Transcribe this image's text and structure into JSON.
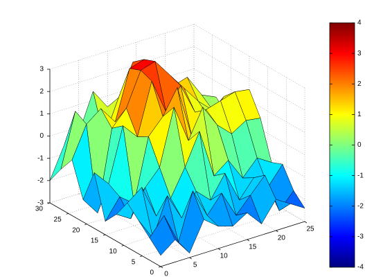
{
  "chart_data": {
    "type": "surface",
    "x": [
      0,
      2.5,
      5,
      7.5,
      10,
      12.5,
      15,
      17.5,
      20,
      22.5,
      25
    ],
    "y": [
      0,
      3,
      6,
      9,
      12,
      15,
      18,
      21,
      24,
      27,
      30
    ],
    "z": [
      [
        -2.5,
        -2,
        -2.8,
        -1.5,
        -2,
        -2.2,
        -1.8,
        -2.5,
        -1.6,
        -2,
        -2.4
      ],
      [
        -2,
        -1.2,
        -2.6,
        -0.5,
        -1.8,
        -1,
        -2.2,
        -1.5,
        -0.8,
        -2.6,
        -1.9
      ],
      [
        -1.5,
        -2.5,
        -0.8,
        -2,
        -1,
        -1.6,
        -0.6,
        -2,
        -1.2,
        -1.8,
        -1
      ],
      [
        -1,
        -0.5,
        -2,
        -1.4,
        -0.2,
        1.2,
        -1,
        -0.5,
        -1.5,
        -0.8,
        -1.2
      ],
      [
        -1.8,
        -2.2,
        -1,
        -0.3,
        2.2,
        0.5,
        1.8,
        0.8,
        0.2,
        0.6,
        0.5
      ],
      [
        -2.4,
        -1.5,
        -2,
        0.8,
        1.5,
        2.6,
        0.2,
        1.2,
        1.4,
        1.6,
        1.5
      ],
      [
        -0.5,
        -1.2,
        1.2,
        0.5,
        2.8,
        1.2,
        2.2,
        0.8,
        0.3,
        1.1,
        0.4
      ],
      [
        -2,
        -2.8,
        0.8,
        1.5,
        3,
        3.2,
        2.4,
        1.6,
        0.8,
        0.2,
        -0.2
      ],
      [
        -0.5,
        0.9,
        1.4,
        0.6,
        2.8,
        3,
        2.5,
        1.4,
        1.6,
        0.6,
        0.3
      ],
      [
        -1.2,
        1.2,
        -1.5,
        -0.4,
        1.2,
        2.6,
        1,
        0.5,
        -0.8,
        0.2,
        -0.5
      ],
      [
        -2,
        -0.6,
        -0.3,
        1.4,
        0.5,
        -0.2,
        0.8,
        -0.4,
        0.3,
        -0.8,
        -1
      ]
    ],
    "xlim": [
      0,
      25
    ],
    "xticks": [
      0,
      5,
      10,
      15,
      20,
      25
    ],
    "ylim": [
      0,
      30
    ],
    "yticks": [
      0,
      5,
      10,
      15,
      20,
      25,
      30
    ],
    "zlim": [
      -3,
      3
    ],
    "zticks": [
      -3,
      -2,
      -1,
      0,
      1,
      2,
      3
    ],
    "clim": [
      -4,
      4
    ],
    "cticks": [
      -4,
      -3,
      -2,
      -1,
      0,
      1,
      2,
      3,
      4
    ],
    "colormap": "jet",
    "grid": true
  }
}
